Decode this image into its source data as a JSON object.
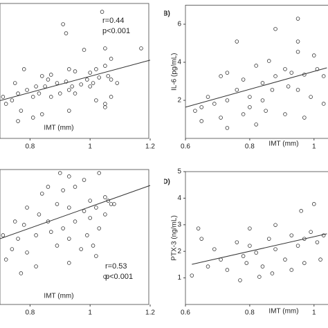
{
  "chart_data": [
    {
      "type": "scatter",
      "x_label": "IMT (mm)",
      "annotations": [
        "r=0.44",
        "p<0.001"
      ],
      "color": "#333333",
      "xlim": [
        0.7,
        1.2
      ],
      "ylim": [
        0,
        10
      ],
      "xticks": [
        0.8,
        1,
        1.2
      ],
      "x": [
        1.04,
        0.92,
        0.91,
        0.98,
        1.05,
        1.07,
        0.78,
        0.84,
        0.86,
        0.87,
        0.93,
        0.95,
        1.0,
        1.02,
        1.05,
        1.06,
        0.75,
        0.79,
        0.82,
        0.85,
        0.89,
        0.92,
        0.94,
        0.97,
        0.99,
        1.01,
        1.03,
        1.07,
        0.71,
        0.74,
        0.76,
        0.81,
        0.83,
        0.87,
        0.9,
        0.93,
        0.95,
        1.0,
        1.02,
        1.05,
        1.07,
        1.09,
        0.72,
        0.77,
        0.81,
        0.76,
        0.84,
        0.93,
        1.05,
        1.17
      ],
      "values": [
        9.38,
        7.79,
        8.46,
        6.56,
        6.67,
        5.9,
        5.13,
        4.62,
        4.36,
        4.72,
        5.13,
        4.97,
        4.87,
        5.13,
        5.38,
        4.62,
        4.1,
        3.59,
        3.85,
        3.85,
        4.1,
        4.21,
        3.85,
        4.0,
        4.36,
        4.1,
        4.51,
        4.36,
        3.08,
        2.82,
        3.33,
        3.08,
        3.33,
        3.08,
        3.33,
        3.59,
        3.33,
        3.85,
        2.82,
        2.56,
        3.08,
        4.1,
        2.56,
        2.05,
        1.54,
        1.28,
        1.79,
        2.05,
        2.31,
        6.67
      ],
      "fit": {
        "x": [
          0.7,
          1.2
        ],
        "y": [
          2.8,
          5.8
        ]
      }
    },
    {
      "type": "scatter",
      "panel_label": "(B)",
      "x_label": "IMT (mm)",
      "y_label": "IL-6 (pg/mL)",
      "color": "#333333",
      "xlim": [
        0.6,
        1.05
      ],
      "ylim": [
        0,
        7
      ],
      "xticks": [
        0.6,
        0.8,
        1
      ],
      "yticks": [
        2,
        4,
        6
      ],
      "x": [
        0.95,
        0.88,
        0.95,
        0.95,
        1.0,
        0.76,
        0.82,
        0.86,
        0.91,
        0.73,
        0.71,
        0.78,
        0.84,
        0.88,
        0.93,
        0.97,
        1.01,
        0.67,
        0.69,
        0.73,
        0.76,
        0.8,
        0.84,
        0.87,
        0.92,
        0.95,
        0.99,
        0.63,
        0.65,
        0.71,
        0.78,
        0.82,
        0.73,
        0.65,
        0.91,
        0.97,
        1.03,
        1.03,
        0.85,
        0.8
      ],
      "values": [
        6.29,
        5.75,
        5.09,
        4.55,
        4.36,
        5.09,
        3.82,
        4.07,
        3.64,
        3.45,
        3.27,
        3.09,
        2.91,
        3.27,
        3.45,
        3.35,
        3.64,
        2.18,
        1.82,
        2.0,
        2.55,
        2.18,
        2.0,
        2.55,
        2.73,
        2.55,
        2.18,
        1.45,
        1.64,
        1.09,
        1.27,
        0.73,
        0.55,
        0.91,
        1.27,
        1.09,
        1.82,
        3.27,
        1.45,
        1.64
      ],
      "fit": {
        "x": [
          0.6,
          1.04
        ],
        "y": [
          1.64,
          3.71
        ]
      }
    },
    {
      "type": "scatter",
      "x_label": "IMT (mm)",
      "annotations": [
        "r=0.53",
        "p<0.001"
      ],
      "color": "#333333",
      "xlim": [
        0.7,
        1.2
      ],
      "ylim": [
        0,
        10
      ],
      "xticks": [
        0.8,
        1,
        1.2
      ],
      "x": [
        0.9,
        0.93,
        0.98,
        1.03,
        0.86,
        0.84,
        0.91,
        0.95,
        1.05,
        1.0,
        1.06,
        0.79,
        0.83,
        0.89,
        0.93,
        0.98,
        1.02,
        1.07,
        0.75,
        0.78,
        0.86,
        0.91,
        0.95,
        1.0,
        1.05,
        0.71,
        0.76,
        0.82,
        0.87,
        0.93,
        0.99,
        1.03,
        0.74,
        0.79,
        0.89,
        0.97,
        1.01,
        0.72,
        0.82,
        0.93,
        1.02,
        0.77,
        1.05,
        1.08
      ],
      "values": [
        9.74,
        9.49,
        9.23,
        9.74,
        8.72,
        8.21,
        8.46,
        8.72,
        7.95,
        7.69,
        7.69,
        7.18,
        6.67,
        7.44,
        7.18,
        6.92,
        7.18,
        7.44,
        6.15,
        5.9,
        6.15,
        5.64,
        6.15,
        6.41,
        6.67,
        5.13,
        4.87,
        5.13,
        5.38,
        4.87,
        5.13,
        5.64,
        4.1,
        3.85,
        4.36,
        4.1,
        4.36,
        3.33,
        2.82,
        3.08,
        3.59,
        2.31,
        2.05,
        7.44
      ],
      "fit": {
        "x": [
          0.7,
          1.2
        ],
        "y": [
          4.87,
          8.82
        ]
      }
    },
    {
      "type": "scatter",
      "panel_label": "(D)",
      "x_label": "IMT (mm)",
      "y_label": "PTX-3 (ng/mL)",
      "color": "#333333",
      "xlim": [
        0.6,
        1.05
      ],
      "ylim": [
        0,
        5
      ],
      "xticks": [
        0.6,
        0.8,
        1
      ],
      "yticks": [
        1,
        2,
        3,
        4,
        5
      ],
      "x": [
        0.62,
        0.64,
        0.65,
        0.69,
        0.71,
        0.76,
        0.78,
        0.8,
        0.82,
        0.84,
        0.86,
        0.88,
        0.91,
        0.93,
        0.95,
        0.97,
        0.99,
        1.01,
        1.03,
        0.96,
        1.0,
        0.8,
        0.73,
        0.77,
        0.83,
        0.87,
        0.93,
        0.97,
        0.67,
        0.88,
        1.02,
        0.79
      ],
      "values": [
        1.09,
        2.86,
        2.47,
        2.08,
        1.69,
        2.34,
        1.82,
        2.21,
        1.95,
        1.43,
        2.47,
        2.08,
        1.69,
        2.6,
        2.21,
        2.47,
        2.73,
        2.34,
        2.6,
        3.52,
        3.78,
        2.86,
        1.3,
        0.91,
        1.04,
        1.17,
        1.3,
        1.56,
        1.43,
        2.99,
        1.69,
        1.56
      ],
      "fit": {
        "x": [
          0.62,
          1.04
        ],
        "y": [
          1.51,
          2.66
        ]
      }
    }
  ]
}
